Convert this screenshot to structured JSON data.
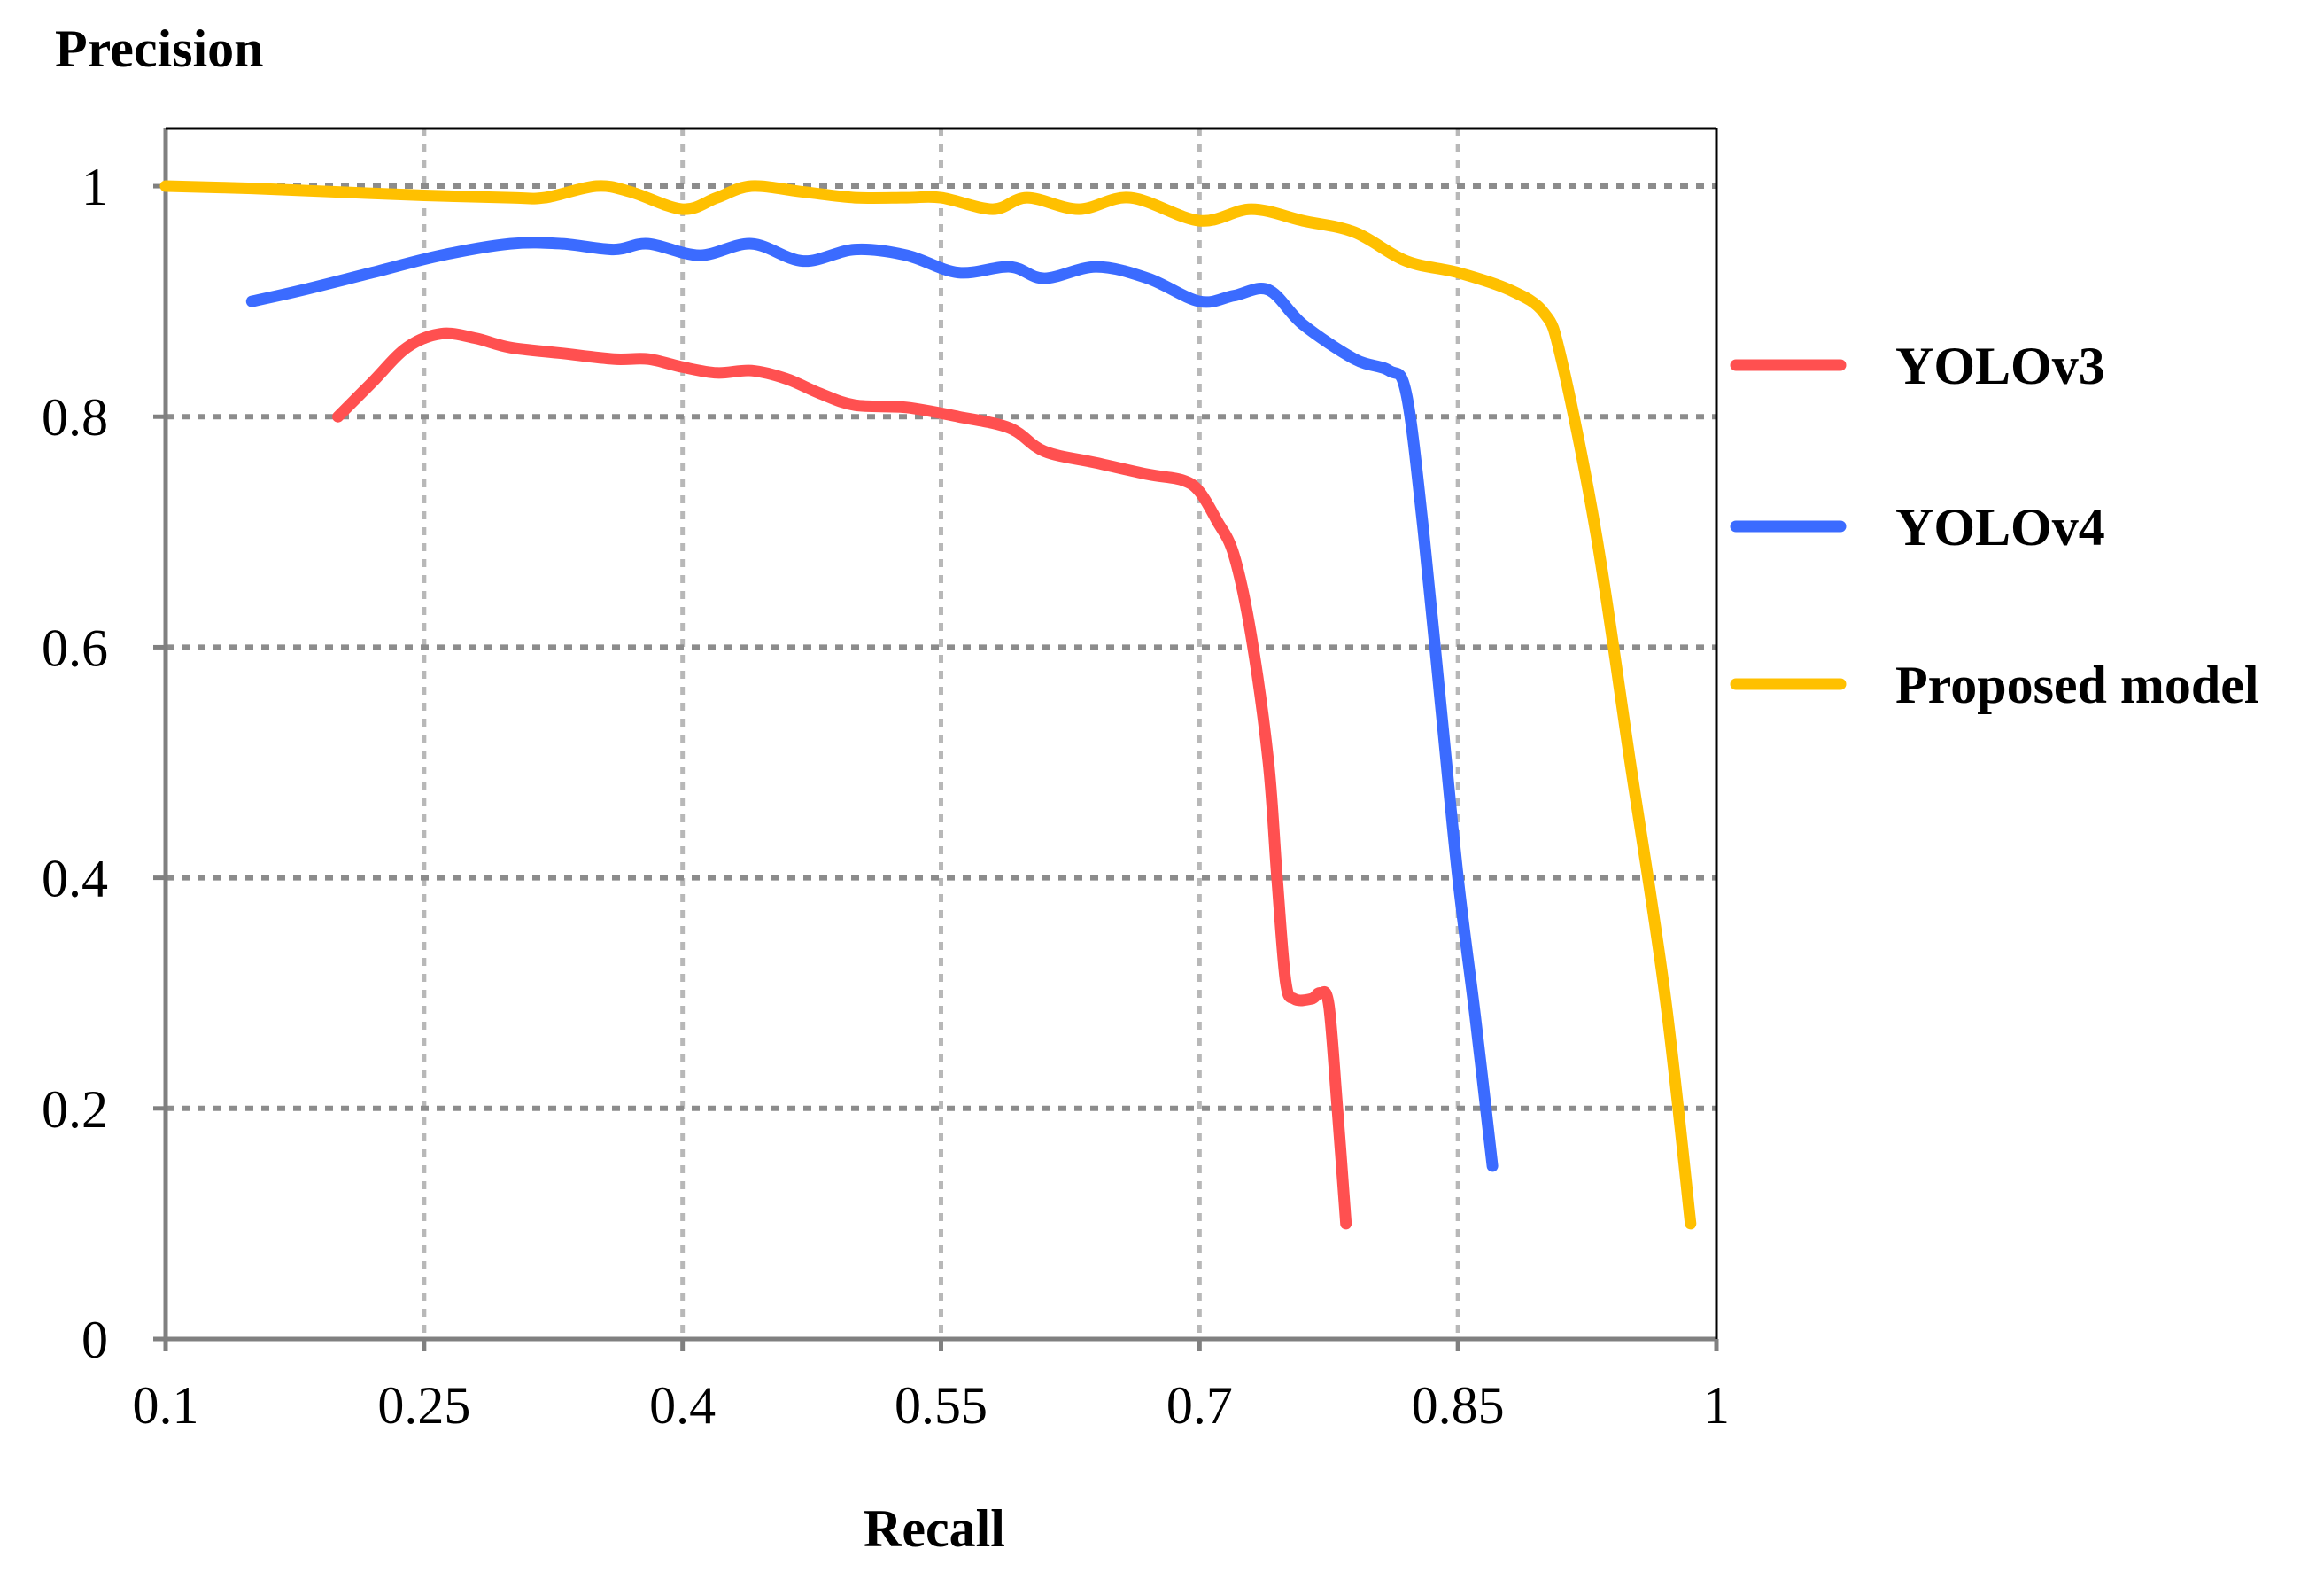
{
  "chart_data": {
    "type": "line",
    "title": "",
    "ylabel": "Precision",
    "xlabel": "Recall",
    "xlim": [
      0.1,
      1.0
    ],
    "ylim": [
      0,
      1.05
    ],
    "x_ticks": [
      {
        "value": 0.1,
        "label": "0.1"
      },
      {
        "value": 0.25,
        "label": "0.25"
      },
      {
        "value": 0.4,
        "label": "0.4"
      },
      {
        "value": 0.55,
        "label": "0.55"
      },
      {
        "value": 0.7,
        "label": "0.7"
      },
      {
        "value": 0.85,
        "label": "0.85"
      },
      {
        "value": 1.0,
        "label": "1"
      }
    ],
    "y_ticks": [
      {
        "value": 0,
        "label": "0"
      },
      {
        "value": 0.2,
        "label": "0.2"
      },
      {
        "value": 0.4,
        "label": "0.4"
      },
      {
        "value": 0.6,
        "label": "0.6"
      },
      {
        "value": 0.8,
        "label": "0.8"
      },
      {
        "value": 1.0,
        "label": "1"
      }
    ],
    "grid": true,
    "legend_position": "right",
    "series": [
      {
        "name": "YOLOv3",
        "color": "#ff5050",
        "points": [
          [
            0.2,
            0.8
          ],
          [
            0.22,
            0.83
          ],
          [
            0.24,
            0.86
          ],
          [
            0.26,
            0.872
          ],
          [
            0.28,
            0.868
          ],
          [
            0.3,
            0.86
          ],
          [
            0.33,
            0.855
          ],
          [
            0.36,
            0.85
          ],
          [
            0.38,
            0.85
          ],
          [
            0.4,
            0.843
          ],
          [
            0.42,
            0.838
          ],
          [
            0.44,
            0.84
          ],
          [
            0.46,
            0.833
          ],
          [
            0.48,
            0.82
          ],
          [
            0.5,
            0.81
          ],
          [
            0.53,
            0.808
          ],
          [
            0.56,
            0.8
          ],
          [
            0.59,
            0.79
          ],
          [
            0.61,
            0.77
          ],
          [
            0.64,
            0.76
          ],
          [
            0.67,
            0.75
          ],
          [
            0.69,
            0.745
          ],
          [
            0.7,
            0.735
          ],
          [
            0.71,
            0.71
          ],
          [
            0.72,
            0.68
          ],
          [
            0.73,
            0.61
          ],
          [
            0.74,
            0.5
          ],
          [
            0.745,
            0.4
          ],
          [
            0.75,
            0.31
          ],
          [
            0.755,
            0.295
          ],
          [
            0.765,
            0.295
          ],
          [
            0.77,
            0.3
          ],
          [
            0.775,
            0.29
          ],
          [
            0.78,
            0.2
          ],
          [
            0.785,
            0.1
          ]
        ]
      },
      {
        "name": "YOLOv4",
        "color": "#3b6bff",
        "points": [
          [
            0.15,
            0.9
          ],
          [
            0.18,
            0.91
          ],
          [
            0.22,
            0.925
          ],
          [
            0.26,
            0.94
          ],
          [
            0.3,
            0.95
          ],
          [
            0.33,
            0.95
          ],
          [
            0.36,
            0.945
          ],
          [
            0.38,
            0.95
          ],
          [
            0.41,
            0.94
          ],
          [
            0.44,
            0.95
          ],
          [
            0.47,
            0.935
          ],
          [
            0.5,
            0.945
          ],
          [
            0.53,
            0.94
          ],
          [
            0.56,
            0.925
          ],
          [
            0.59,
            0.93
          ],
          [
            0.61,
            0.92
          ],
          [
            0.64,
            0.93
          ],
          [
            0.67,
            0.92
          ],
          [
            0.7,
            0.9
          ],
          [
            0.72,
            0.905
          ],
          [
            0.74,
            0.91
          ],
          [
            0.76,
            0.88
          ],
          [
            0.79,
            0.85
          ],
          [
            0.81,
            0.84
          ],
          [
            0.82,
            0.82
          ],
          [
            0.83,
            0.7
          ],
          [
            0.84,
            0.55
          ],
          [
            0.85,
            0.4
          ],
          [
            0.86,
            0.28
          ],
          [
            0.87,
            0.15
          ]
        ]
      },
      {
        "name": "Proposed model",
        "color": "#ffc000",
        "points": [
          [
            0.1,
            1.0
          ],
          [
            0.15,
            0.998
          ],
          [
            0.2,
            0.995
          ],
          [
            0.25,
            0.992
          ],
          [
            0.3,
            0.99
          ],
          [
            0.32,
            0.99
          ],
          [
            0.35,
            1.0
          ],
          [
            0.37,
            0.995
          ],
          [
            0.4,
            0.98
          ],
          [
            0.42,
            0.99
          ],
          [
            0.44,
            1.0
          ],
          [
            0.47,
            0.995
          ],
          [
            0.5,
            0.99
          ],
          [
            0.53,
            0.99
          ],
          [
            0.55,
            0.99
          ],
          [
            0.58,
            0.98
          ],
          [
            0.6,
            0.99
          ],
          [
            0.63,
            0.98
          ],
          [
            0.66,
            0.99
          ],
          [
            0.7,
            0.97
          ],
          [
            0.73,
            0.98
          ],
          [
            0.76,
            0.97
          ],
          [
            0.79,
            0.96
          ],
          [
            0.82,
            0.935
          ],
          [
            0.85,
            0.925
          ],
          [
            0.88,
            0.91
          ],
          [
            0.9,
            0.89
          ],
          [
            0.91,
            0.85
          ],
          [
            0.93,
            0.7
          ],
          [
            0.95,
            0.5
          ],
          [
            0.97,
            0.3
          ],
          [
            0.985,
            0.1
          ]
        ]
      }
    ]
  }
}
